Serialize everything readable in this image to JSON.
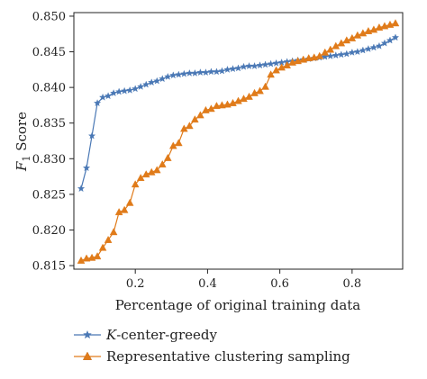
{
  "chart_data": {
    "type": "line",
    "title": "",
    "xlabel": "Percentage of original training data",
    "ylabel": "F1 Score",
    "ylabel_main": "F",
    "ylabel_sub": "1",
    "ylabel_rest": " Score",
    "xlim": [
      0.03,
      0.94
    ],
    "ylim": [
      0.8145,
      0.8505
    ],
    "xticks": [
      0.2,
      0.4,
      0.6,
      0.8
    ],
    "xtick_labels": [
      "0.2",
      "0.4",
      "0.6",
      "0.8"
    ],
    "yticks": [
      0.815,
      0.82,
      0.825,
      0.83,
      0.835,
      0.84,
      0.845,
      0.85
    ],
    "ytick_labels": [
      "0.815",
      "0.820",
      "0.825",
      "0.830",
      "0.835",
      "0.840",
      "0.845",
      "0.850"
    ],
    "grid": false,
    "legend_position": "bottom-left, below plot",
    "series": [
      {
        "name": "K-center-greedy",
        "legend_italic": "K",
        "legend_rest": "-center-greedy",
        "color": "#4a78b5",
        "marker": "star",
        "x": [
          0.05,
          0.065,
          0.08,
          0.095,
          0.11,
          0.125,
          0.14,
          0.155,
          0.17,
          0.185,
          0.2,
          0.215,
          0.23,
          0.245,
          0.26,
          0.275,
          0.29,
          0.305,
          0.32,
          0.335,
          0.35,
          0.365,
          0.38,
          0.395,
          0.41,
          0.425,
          0.44,
          0.455,
          0.47,
          0.485,
          0.5,
          0.515,
          0.53,
          0.545,
          0.56,
          0.575,
          0.59,
          0.605,
          0.62,
          0.635,
          0.65,
          0.665,
          0.68,
          0.695,
          0.71,
          0.725,
          0.74,
          0.755,
          0.77,
          0.785,
          0.8,
          0.815,
          0.83,
          0.845,
          0.86,
          0.875,
          0.89,
          0.905,
          0.92
        ],
        "y": [
          0.8258,
          0.8287,
          0.8332,
          0.8378,
          0.8386,
          0.8388,
          0.8392,
          0.8394,
          0.8395,
          0.8396,
          0.8398,
          0.8401,
          0.8404,
          0.8407,
          0.8409,
          0.8412,
          0.8415,
          0.8417,
          0.8418,
          0.8419,
          0.842,
          0.842,
          0.8421,
          0.8421,
          0.8422,
          0.8422,
          0.8423,
          0.8425,
          0.8426,
          0.8427,
          0.8429,
          0.843,
          0.843,
          0.8431,
          0.8432,
          0.8433,
          0.8434,
          0.8435,
          0.8436,
          0.8437,
          0.8438,
          0.8439,
          0.844,
          0.8441,
          0.8442,
          0.8443,
          0.8444,
          0.8445,
          0.8446,
          0.8447,
          0.8449,
          0.845,
          0.8452,
          0.8454,
          0.8456,
          0.8458,
          0.8462,
          0.8466,
          0.847
        ]
      },
      {
        "name": "Representative clustering sampling",
        "legend_italic": "",
        "legend_rest": "Representative clustering sampling",
        "color": "#e07b1a",
        "marker": "triangle",
        "x": [
          0.05,
          0.065,
          0.08,
          0.095,
          0.11,
          0.125,
          0.14,
          0.155,
          0.17,
          0.185,
          0.2,
          0.215,
          0.23,
          0.245,
          0.26,
          0.275,
          0.29,
          0.305,
          0.32,
          0.335,
          0.35,
          0.365,
          0.38,
          0.395,
          0.41,
          0.425,
          0.44,
          0.455,
          0.47,
          0.485,
          0.5,
          0.515,
          0.53,
          0.545,
          0.56,
          0.575,
          0.59,
          0.605,
          0.62,
          0.635,
          0.65,
          0.665,
          0.68,
          0.695,
          0.71,
          0.725,
          0.74,
          0.755,
          0.77,
          0.785,
          0.8,
          0.815,
          0.83,
          0.845,
          0.86,
          0.875,
          0.89,
          0.905,
          0.92
        ],
        "y": [
          0.8157,
          0.816,
          0.8161,
          0.8163,
          0.8175,
          0.8186,
          0.8197,
          0.8225,
          0.8228,
          0.8238,
          0.8264,
          0.8273,
          0.8278,
          0.8281,
          0.8284,
          0.8292,
          0.8301,
          0.8318,
          0.8322,
          0.8342,
          0.8346,
          0.8355,
          0.8361,
          0.8368,
          0.837,
          0.8374,
          0.8375,
          0.8376,
          0.8378,
          0.8381,
          0.8384,
          0.8387,
          0.8392,
          0.8395,
          0.8401,
          0.8418,
          0.8424,
          0.8428,
          0.8431,
          0.8435,
          0.8437,
          0.8439,
          0.8441,
          0.8442,
          0.8444,
          0.8449,
          0.8453,
          0.8458,
          0.8462,
          0.8466,
          0.8469,
          0.8473,
          0.8476,
          0.8479,
          0.8481,
          0.8484,
          0.8486,
          0.8488,
          0.849
        ]
      }
    ]
  }
}
